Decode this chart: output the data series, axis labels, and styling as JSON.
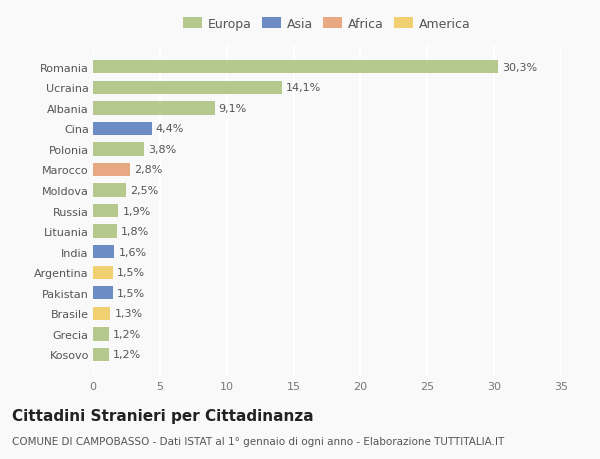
{
  "categories": [
    "Kosovo",
    "Grecia",
    "Brasile",
    "Pakistan",
    "Argentina",
    "India",
    "Lituania",
    "Russia",
    "Moldova",
    "Marocco",
    "Polonia",
    "Cina",
    "Albania",
    "Ucraina",
    "Romania"
  ],
  "values": [
    1.2,
    1.2,
    1.3,
    1.5,
    1.5,
    1.6,
    1.8,
    1.9,
    2.5,
    2.8,
    3.8,
    4.4,
    9.1,
    14.1,
    30.3
  ],
  "labels": [
    "1,2%",
    "1,2%",
    "1,3%",
    "1,5%",
    "1,5%",
    "1,6%",
    "1,8%",
    "1,9%",
    "2,5%",
    "2,8%",
    "3,8%",
    "4,4%",
    "9,1%",
    "14,1%",
    "30,3%"
  ],
  "colors": [
    "#b5c98e",
    "#b5c98e",
    "#f0d070",
    "#6b8cc4",
    "#f0d070",
    "#6b8cc4",
    "#b5c98e",
    "#b5c98e",
    "#b5c98e",
    "#e8a882",
    "#b5c98e",
    "#6b8cc4",
    "#b5c98e",
    "#b5c98e",
    "#b5c98e"
  ],
  "legend_labels": [
    "Europa",
    "Asia",
    "Africa",
    "America"
  ],
  "legend_colors": [
    "#b5c98e",
    "#6b8cc4",
    "#e8a882",
    "#f0d070"
  ],
  "xlim": [
    0,
    35
  ],
  "xticks": [
    0,
    5,
    10,
    15,
    20,
    25,
    30,
    35
  ],
  "title": "Cittadini Stranieri per Cittadinanza",
  "subtitle": "COMUNE DI CAMPOBASSO - Dati ISTAT al 1° gennaio di ogni anno - Elaborazione TUTTITALIA.IT",
  "bg_color": "#f9f9f9",
  "grid_color": "#ffffff",
  "label_fontsize": 8,
  "tick_fontsize": 8,
  "title_fontsize": 11,
  "subtitle_fontsize": 7.5
}
